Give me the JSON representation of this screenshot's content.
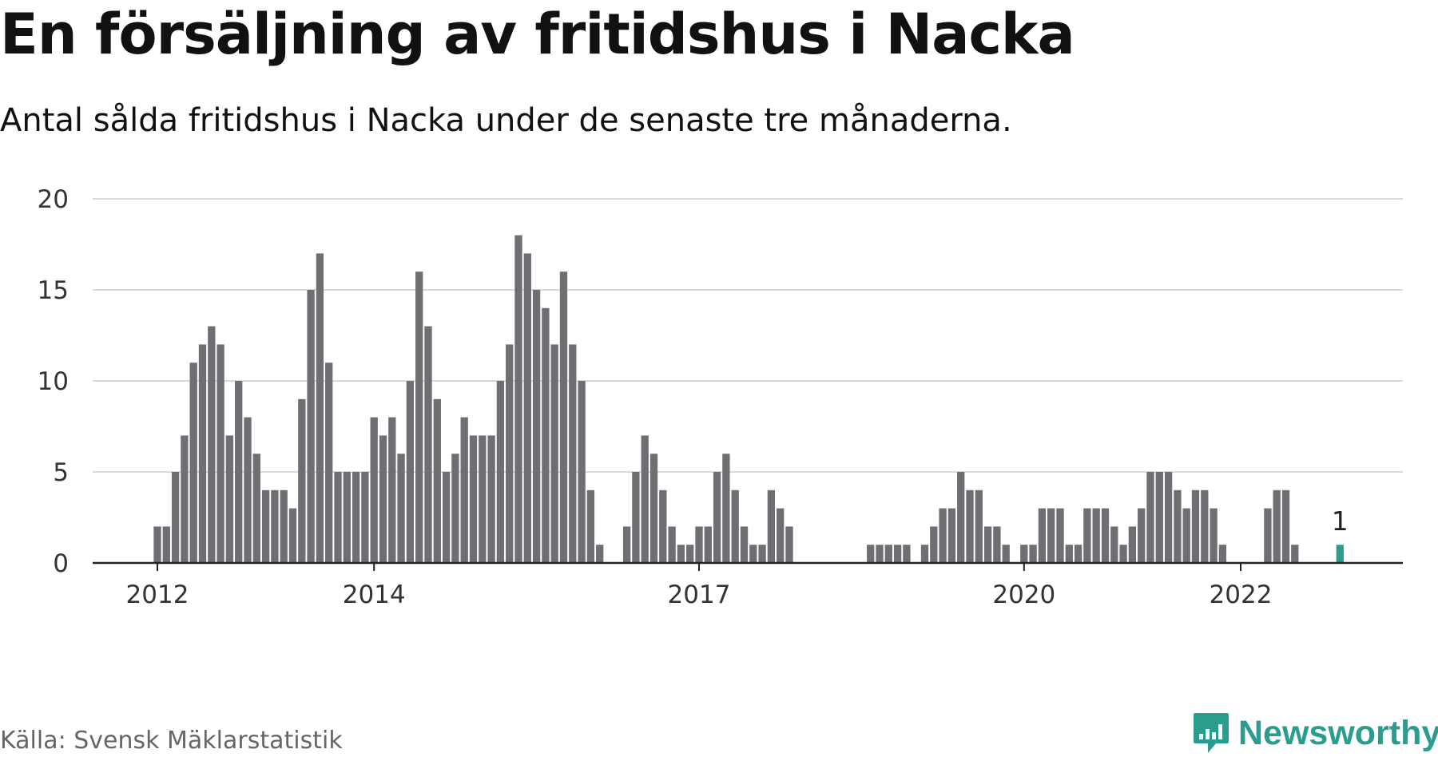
{
  "title": "En försäljning av fritidshus i Nacka",
  "subtitle": "Antal sålda fritidshus i Nacka under de senaste tre månaderna.",
  "source": "Källa: Svensk Mäklarstatistik",
  "brand": {
    "name": "Newsworthy",
    "icon": "newsworthy-logo-icon",
    "color": "#2a9d8f"
  },
  "colors": {
    "bar": "#6e6e73",
    "highlight": "#2a9d8f",
    "grid": "#d9d9d9",
    "axis": "#222222"
  },
  "chart_data": {
    "type": "bar",
    "ylim": [
      0,
      20
    ],
    "yticks": [
      0,
      5,
      10,
      15,
      20
    ],
    "grid": true,
    "xticks": [
      {
        "label": "2012",
        "index": 0
      },
      {
        "label": "2014",
        "index": 24
      },
      {
        "label": "2017",
        "index": 60
      },
      {
        "label": "2020",
        "index": 96
      },
      {
        "label": "2022",
        "index": 120
      }
    ],
    "values": [
      2,
      2,
      5,
      7,
      11,
      12,
      13,
      12,
      7,
      10,
      8,
      6,
      4,
      4,
      4,
      3,
      9,
      15,
      17,
      11,
      5,
      5,
      5,
      5,
      8,
      7,
      8,
      6,
      10,
      16,
      13,
      9,
      5,
      6,
      8,
      7,
      7,
      7,
      10,
      12,
      18,
      17,
      15,
      14,
      12,
      16,
      12,
      10,
      4,
      1,
      0,
      0,
      2,
      5,
      7,
      6,
      4,
      2,
      1,
      1,
      2,
      2,
      5,
      6,
      4,
      2,
      1,
      1,
      4,
      3,
      2,
      0,
      0,
      0,
      0,
      0,
      0,
      0,
      0,
      1,
      1,
      1,
      1,
      1,
      0,
      1,
      2,
      3,
      3,
      5,
      4,
      4,
      2,
      2,
      1,
      0,
      1,
      1,
      3,
      3,
      3,
      1,
      1,
      3,
      3,
      3,
      2,
      1,
      2,
      3,
      5,
      5,
      5,
      4,
      3,
      4,
      4,
      3,
      1,
      0,
      0,
      0,
      0,
      3,
      4,
      4,
      1,
      0,
      0,
      0,
      0,
      1
    ],
    "highlight_index": 131,
    "highlight_label": "1"
  }
}
